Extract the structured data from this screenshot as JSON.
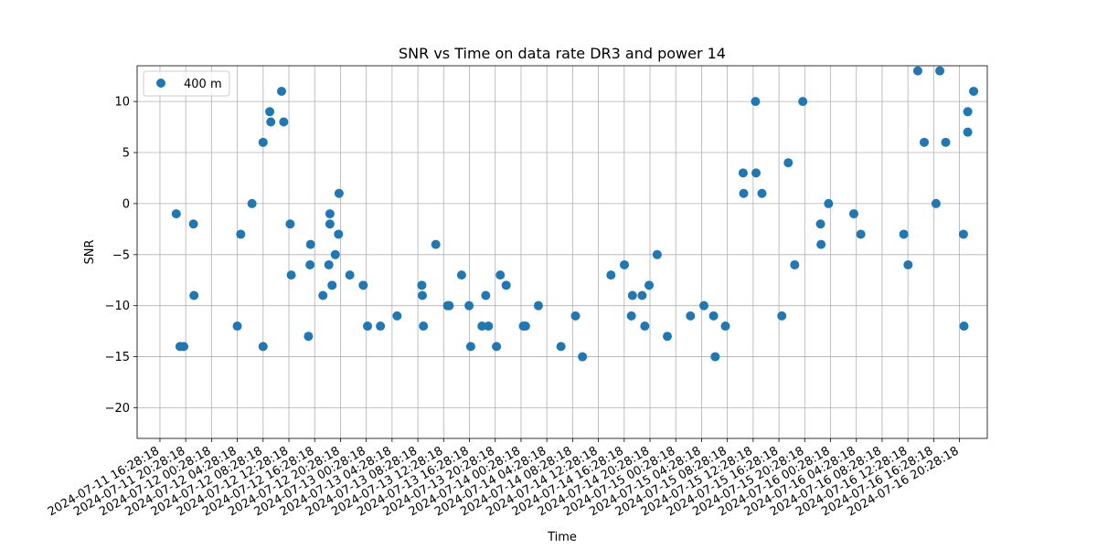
{
  "chart_data": {
    "type": "scatter",
    "title": "SNR vs Time on data rate DR3 and power 14",
    "xlabel": "Time",
    "ylabel": "SNR",
    "ylim": [
      -23,
      13.5
    ],
    "yticks": [
      10,
      5,
      0,
      -5,
      -10,
      -15,
      -20
    ],
    "xlim": [
      "2024-07-11 12:56",
      "2024-07-17 00:47"
    ],
    "xticks": [
      "2024-07-11 16:28:18",
      "2024-07-11 20:28:18",
      "2024-07-12 00:28:18",
      "2024-07-12 04:28:18",
      "2024-07-12 08:28:18",
      "2024-07-12 12:28:18",
      "2024-07-12 16:28:18",
      "2024-07-12 20:28:18",
      "2024-07-13 00:28:18",
      "2024-07-13 04:28:18",
      "2024-07-13 08:28:18",
      "2024-07-13 12:28:18",
      "2024-07-13 16:28:18",
      "2024-07-13 20:28:18",
      "2024-07-14 00:28:18",
      "2024-07-14 04:28:18",
      "2024-07-14 08:28:18",
      "2024-07-14 12:28:18",
      "2024-07-14 16:28:18",
      "2024-07-14 20:28:18",
      "2024-07-15 00:28:18",
      "2024-07-15 04:28:18",
      "2024-07-15 08:28:18",
      "2024-07-15 12:28:18",
      "2024-07-15 16:28:18",
      "2024-07-15 20:28:18",
      "2024-07-16 00:28:18",
      "2024-07-16 04:28:18",
      "2024-07-16 08:28:18",
      "2024-07-16 12:28:18",
      "2024-07-16 16:28:18",
      "2024-07-16 20:28:18"
    ],
    "grid": true,
    "legend_position": "top-left",
    "color": "#1f77b4",
    "series": [
      {
        "name": "400 m",
        "points": [
          [
            "2024-07-11 19:00",
            -1
          ],
          [
            "2024-07-11 19:35",
            -14
          ],
          [
            "2024-07-11 20:10",
            -14
          ],
          [
            "2024-07-11 21:40",
            -2
          ],
          [
            "2024-07-11 21:45",
            -9
          ],
          [
            "2024-07-12 04:28",
            -12
          ],
          [
            "2024-07-12 05:00",
            -3
          ],
          [
            "2024-07-12 06:45",
            0
          ],
          [
            "2024-07-12 08:28",
            -14
          ],
          [
            "2024-07-12 08:28",
            6
          ],
          [
            "2024-07-12 09:30",
            9
          ],
          [
            "2024-07-12 09:40",
            8
          ],
          [
            "2024-07-12 11:20",
            11
          ],
          [
            "2024-07-12 11:40",
            8
          ],
          [
            "2024-07-12 12:40",
            -2
          ],
          [
            "2024-07-12 12:50",
            -7
          ],
          [
            "2024-07-12 15:30",
            -13
          ],
          [
            "2024-07-12 15:45",
            -6
          ],
          [
            "2024-07-12 15:50",
            -4
          ],
          [
            "2024-07-12 17:45",
            -9
          ],
          [
            "2024-07-12 18:40",
            -6
          ],
          [
            "2024-07-12 18:50",
            -1
          ],
          [
            "2024-07-12 18:50",
            -2
          ],
          [
            "2024-07-12 19:10",
            -8
          ],
          [
            "2024-07-12 19:40",
            -5
          ],
          [
            "2024-07-12 20:10",
            -3
          ],
          [
            "2024-07-12 20:15",
            1
          ],
          [
            "2024-07-12 21:55",
            -7
          ],
          [
            "2024-07-13 00:00",
            -8
          ],
          [
            "2024-07-13 00:40",
            -12
          ],
          [
            "2024-07-13 02:40",
            -12
          ],
          [
            "2024-07-13 05:15",
            -11
          ],
          [
            "2024-07-13 09:05",
            -8
          ],
          [
            "2024-07-13 09:10",
            -9
          ],
          [
            "2024-07-13 09:20",
            -12
          ],
          [
            "2024-07-13 11:15",
            -4
          ],
          [
            "2024-07-13 13:05",
            -10
          ],
          [
            "2024-07-13 13:20",
            -10
          ],
          [
            "2024-07-13 15:15",
            -7
          ],
          [
            "2024-07-13 16:25",
            -10
          ],
          [
            "2024-07-13 16:40",
            -14
          ],
          [
            "2024-07-13 18:25",
            -12
          ],
          [
            "2024-07-13 19:00",
            -9
          ],
          [
            "2024-07-13 19:25",
            -12
          ],
          [
            "2024-07-13 20:40",
            -14
          ],
          [
            "2024-07-13 21:15",
            -7
          ],
          [
            "2024-07-13 22:10",
            -8
          ],
          [
            "2024-07-14 00:50",
            -12
          ],
          [
            "2024-07-14 01:10",
            -12
          ],
          [
            "2024-07-14 03:10",
            -10
          ],
          [
            "2024-07-14 06:40",
            -14
          ],
          [
            "2024-07-14 08:55",
            -11
          ],
          [
            "2024-07-14 10:00",
            -15
          ],
          [
            "2024-07-14 14:25",
            -7
          ],
          [
            "2024-07-14 16:30",
            -6
          ],
          [
            "2024-07-14 17:35",
            -11
          ],
          [
            "2024-07-14 17:45",
            -9
          ],
          [
            "2024-07-14 19:15",
            -9
          ],
          [
            "2024-07-14 19:40",
            -12
          ],
          [
            "2024-07-14 20:20",
            -8
          ],
          [
            "2024-07-14 21:35",
            -5
          ],
          [
            "2024-07-14 23:10",
            -13
          ],
          [
            "2024-07-15 02:45",
            -11
          ],
          [
            "2024-07-15 04:50",
            -10
          ],
          [
            "2024-07-15 06:20",
            -11
          ],
          [
            "2024-07-15 06:35",
            -15
          ],
          [
            "2024-07-15 08:10",
            -12
          ],
          [
            "2024-07-15 10:55",
            3
          ],
          [
            "2024-07-15 11:00",
            1
          ],
          [
            "2024-07-15 12:50",
            10
          ],
          [
            "2024-07-15 12:55",
            3
          ],
          [
            "2024-07-15 13:50",
            1
          ],
          [
            "2024-07-15 16:55",
            -11
          ],
          [
            "2024-07-15 17:55",
            4
          ],
          [
            "2024-07-15 18:55",
            -6
          ],
          [
            "2024-07-15 20:10",
            10
          ],
          [
            "2024-07-15 22:55",
            -2
          ],
          [
            "2024-07-15 23:00",
            -4
          ],
          [
            "2024-07-16 00:10",
            0
          ],
          [
            "2024-07-16 04:05",
            -1
          ],
          [
            "2024-07-16 05:10",
            -3
          ],
          [
            "2024-07-16 11:50",
            -3
          ],
          [
            "2024-07-16 12:30",
            -6
          ],
          [
            "2024-07-16 14:00",
            13
          ],
          [
            "2024-07-16 15:00",
            6
          ],
          [
            "2024-07-16 16:50",
            0
          ],
          [
            "2024-07-16 17:25",
            13
          ],
          [
            "2024-07-16 18:20",
            6
          ],
          [
            "2024-07-16 21:05",
            -3
          ],
          [
            "2024-07-16 21:10",
            -12
          ],
          [
            "2024-07-16 21:45",
            9
          ],
          [
            "2024-07-16 21:45",
            7
          ],
          [
            "2024-07-16 22:40",
            11
          ]
        ]
      }
    ]
  }
}
